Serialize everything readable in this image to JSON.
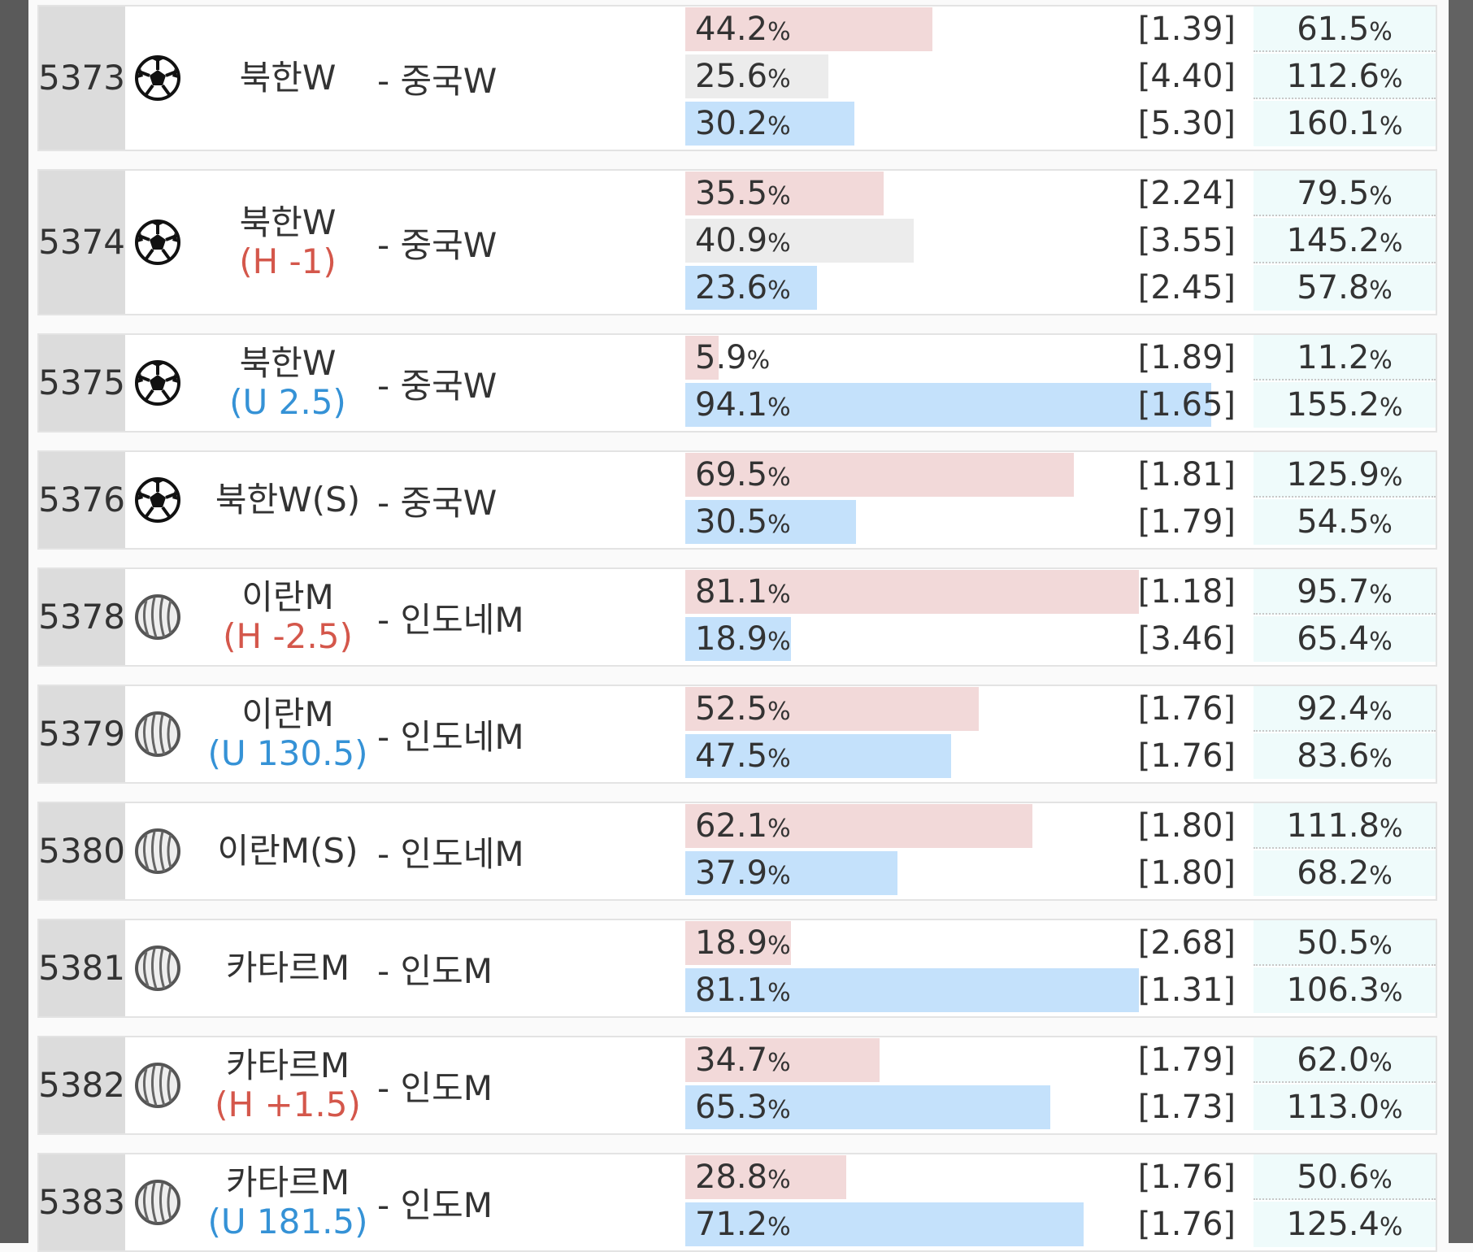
{
  "matches": [
    {
      "id": "5373",
      "sport": "soccer",
      "home": "북한W",
      "away": "- 중국W",
      "outcomes": [
        {
          "pct": {
            "value": 44.2,
            "label": "44.2%"
          },
          "odds": "[1.39]",
          "ret": "61.5%"
        },
        {
          "pct": {
            "value": 25.6,
            "label": "25.6%"
          },
          "odds": "[4.40]",
          "ret": "112.6%"
        },
        {
          "pct": {
            "value": 30.2,
            "label": "30.2%"
          },
          "odds": "[5.30]",
          "ret": "160.1%"
        }
      ]
    },
    {
      "id": "5374",
      "sport": "soccer",
      "home": "북한W",
      "handicap": {
        "text": "(H -1)",
        "color": "#d4574b"
      },
      "away": "- 중국W",
      "outcomes": [
        {
          "pct": {
            "value": 35.5,
            "label": "35.5%"
          },
          "odds": "[2.24]",
          "ret": "79.5%"
        },
        {
          "pct": {
            "value": 40.9,
            "label": "40.9%"
          },
          "odds": "[3.55]",
          "ret": "145.2%"
        },
        {
          "pct": {
            "value": 23.6,
            "label": "23.6%"
          },
          "odds": "[2.45]",
          "ret": "57.8%"
        }
      ]
    },
    {
      "id": "5375",
      "sport": "soccer",
      "home": "북한W",
      "handicap": {
        "text": "(U 2.5)",
        "color": "#3592d6"
      },
      "away": "- 중국W",
      "outcomes": [
        {
          "pct": {
            "value": 5.9,
            "label": "5.9%"
          },
          "odds": "[1.89]",
          "ret": "11.2%"
        },
        {
          "pct": {
            "value": 94.1,
            "label": "94.1%"
          },
          "odds": "[1.65]",
          "ret": "155.2%"
        }
      ]
    },
    {
      "id": "5376",
      "sport": "soccer",
      "home": "북한W(S)",
      "away": "- 중국W",
      "outcomes": [
        {
          "pct": {
            "value": 69.5,
            "label": "69.5%"
          },
          "odds": "[1.81]",
          "ret": "125.9%"
        },
        {
          "pct": {
            "value": 30.5,
            "label": "30.5%"
          },
          "odds": "[1.79]",
          "ret": "54.5%"
        }
      ]
    },
    {
      "id": "5378",
      "sport": "volleyball",
      "home": "이란M",
      "handicap": {
        "text": "(H -2.5)",
        "color": "#d4574b"
      },
      "away": "- 인도네M",
      "outcomes": [
        {
          "pct": {
            "value": 81.1,
            "label": "81.1%"
          },
          "odds": "[1.18]",
          "ret": "95.7%"
        },
        {
          "pct": {
            "value": 18.9,
            "label": "18.9%"
          },
          "odds": "[3.46]",
          "ret": "65.4%"
        }
      ]
    },
    {
      "id": "5379",
      "sport": "volleyball",
      "home": "이란M",
      "handicap": {
        "text": "(U 130.5)",
        "color": "#3592d6"
      },
      "away": "- 인도네M",
      "outcomes": [
        {
          "pct": {
            "value": 52.5,
            "label": "52.5%"
          },
          "odds": "[1.76]",
          "ret": "92.4%"
        },
        {
          "pct": {
            "value": 47.5,
            "label": "47.5%"
          },
          "odds": "[1.76]",
          "ret": "83.6%"
        }
      ]
    },
    {
      "id": "5380",
      "sport": "volleyball",
      "home": "이란M(S)",
      "away": "- 인도네M",
      "outcomes": [
        {
          "pct": {
            "value": 62.1,
            "label": "62.1%"
          },
          "odds": "[1.80]",
          "ret": "111.8%"
        },
        {
          "pct": {
            "value": 37.9,
            "label": "37.9%"
          },
          "odds": "[1.80]",
          "ret": "68.2%"
        }
      ]
    },
    {
      "id": "5381",
      "sport": "volleyball",
      "home": "카타르M",
      "away": "- 인도M",
      "outcomes": [
        {
          "pct": {
            "value": 18.9,
            "label": "18.9%"
          },
          "odds": "[2.68]",
          "ret": "50.5%"
        },
        {
          "pct": {
            "value": 81.1,
            "label": "81.1%"
          },
          "odds": "[1.31]",
          "ret": "106.3%"
        }
      ]
    },
    {
      "id": "5382",
      "sport": "volleyball",
      "home": "카타르M",
      "handicap": {
        "text": "(H +1.5)",
        "color": "#d4574b"
      },
      "away": "- 인도M",
      "outcomes": [
        {
          "pct": {
            "value": 34.7,
            "label": "34.7%"
          },
          "odds": "[1.79]",
          "ret": "62.0%"
        },
        {
          "pct": {
            "value": 65.3,
            "label": "65.3%"
          },
          "odds": "[1.73]",
          "ret": "113.0%"
        }
      ]
    },
    {
      "id": "5383",
      "sport": "volleyball",
      "home": "카타르M",
      "handicap": {
        "text": "(U 181.5)",
        "color": "#3592d6"
      },
      "away": "- 인도M",
      "outcomes": [
        {
          "pct": {
            "value": 28.8,
            "label": "28.8%"
          },
          "odds": "[1.76]",
          "ret": "50.6%"
        },
        {
          "pct": {
            "value": 71.2,
            "label": "71.2%"
          },
          "odds": "[1.76]",
          "ret": "125.4%"
        }
      ]
    }
  ]
}
